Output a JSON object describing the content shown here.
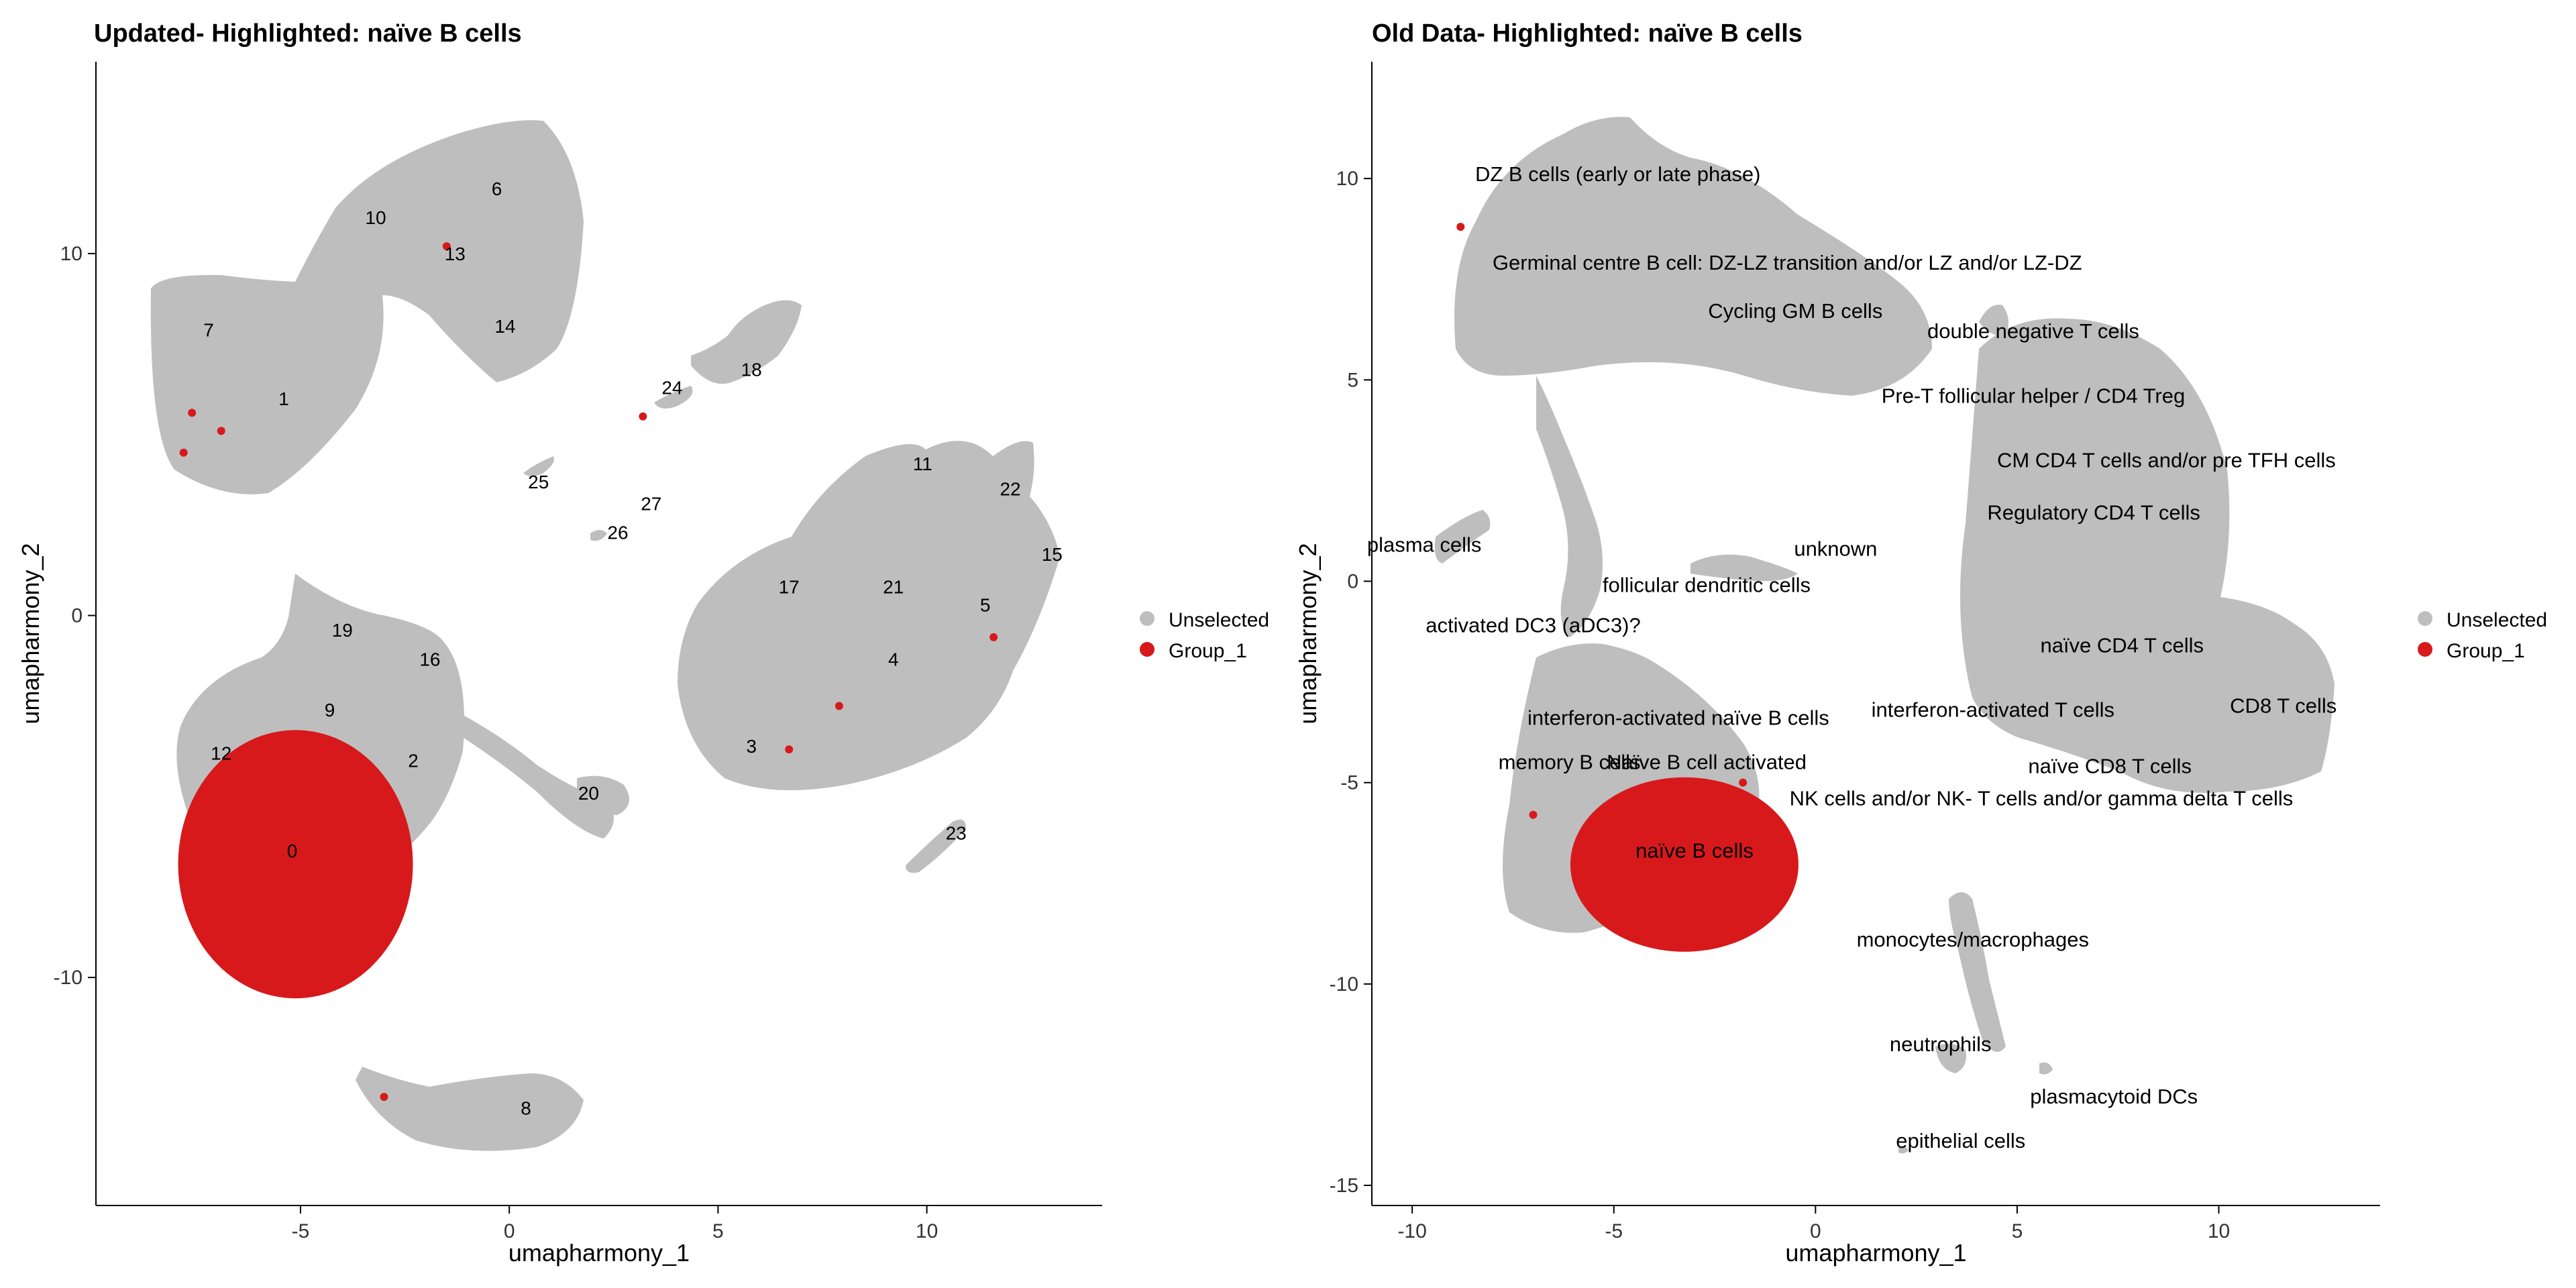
{
  "colors": {
    "unselected": "#bebebe",
    "group": "#d7191c",
    "axis": "#000000",
    "background": "#ffffff"
  },
  "legend": {
    "items": [
      {
        "label": "Unselected",
        "color": "#bebebe"
      },
      {
        "label": "Group_1",
        "color": "#d7191c"
      }
    ]
  },
  "chart_data": [
    {
      "type": "scatter",
      "title": "Updated- Highlighted: naïve B cells",
      "xlabel": "umapharmony_1",
      "ylabel": "umapharmony_2",
      "xlim": [
        -9.9,
        14.2
      ],
      "ylim": [
        -16.3,
        15.3
      ],
      "x_ticks": [
        -5,
        0,
        5,
        10
      ],
      "y_ticks": [
        -10,
        0,
        10
      ],
      "grid": false,
      "legend_position": "right",
      "series": [
        {
          "name": "Unselected",
          "color": "#bebebe"
        },
        {
          "name": "Group_1",
          "color": "#d7191c"
        }
      ],
      "clusters": [
        {
          "label": "0",
          "x": -5.2,
          "y": -6.5,
          "highlighted": true
        },
        {
          "label": "1",
          "x": -5.4,
          "y": 6.0,
          "highlighted": false
        },
        {
          "label": "2",
          "x": -2.3,
          "y": -4.0,
          "highlighted": false
        },
        {
          "label": "3",
          "x": 5.8,
          "y": -3.6,
          "highlighted": false
        },
        {
          "label": "4",
          "x": 9.2,
          "y": -1.2,
          "highlighted": false
        },
        {
          "label": "5",
          "x": 11.4,
          "y": 0.3,
          "highlighted": false
        },
        {
          "label": "6",
          "x": -0.3,
          "y": 11.8,
          "highlighted": false
        },
        {
          "label": "7",
          "x": -7.2,
          "y": 7.9,
          "highlighted": false
        },
        {
          "label": "8",
          "x": 0.4,
          "y": -13.6,
          "highlighted": false
        },
        {
          "label": "9",
          "x": -4.3,
          "y": -2.6,
          "highlighted": false
        },
        {
          "label": "10",
          "x": -3.2,
          "y": 11.0,
          "highlighted": false
        },
        {
          "label": "11",
          "x": 9.9,
          "y": 4.2,
          "highlighted": false
        },
        {
          "label": "12",
          "x": -6.9,
          "y": -3.8,
          "highlighted": false
        },
        {
          "label": "13",
          "x": -1.3,
          "y": 10.0,
          "highlighted": false
        },
        {
          "label": "14",
          "x": -0.1,
          "y": 8.0,
          "highlighted": false
        },
        {
          "label": "15",
          "x": 13.0,
          "y": 1.7,
          "highlighted": false
        },
        {
          "label": "16",
          "x": -1.9,
          "y": -1.2,
          "highlighted": false
        },
        {
          "label": "17",
          "x": 6.7,
          "y": 0.8,
          "highlighted": false
        },
        {
          "label": "18",
          "x": 5.8,
          "y": 6.8,
          "highlighted": false
        },
        {
          "label": "19",
          "x": -4.0,
          "y": -0.4,
          "highlighted": false
        },
        {
          "label": "20",
          "x": 1.9,
          "y": -4.9,
          "highlighted": false
        },
        {
          "label": "21",
          "x": 9.2,
          "y": 0.8,
          "highlighted": false
        },
        {
          "label": "22",
          "x": 12.0,
          "y": 3.5,
          "highlighted": false
        },
        {
          "label": "23",
          "x": 10.7,
          "y": -6.0,
          "highlighted": false
        },
        {
          "label": "24",
          "x": 3.9,
          "y": 6.3,
          "highlighted": false
        },
        {
          "label": "25",
          "x": 0.7,
          "y": 3.7,
          "highlighted": false
        },
        {
          "label": "26",
          "x": 2.6,
          "y": 2.3,
          "highlighted": false
        },
        {
          "label": "27",
          "x": 3.4,
          "y": 3.1,
          "highlighted": false
        }
      ]
    },
    {
      "type": "scatter",
      "title": "Old Data- Highlighted: naïve B cells",
      "xlabel": "umapharmony_1",
      "ylabel": "umapharmony_2",
      "xlim": [
        -11.0,
        14.0
      ],
      "ylim": [
        -15.5,
        12.9
      ],
      "x_ticks": [
        -10,
        -5,
        0,
        5,
        10
      ],
      "y_ticks": [
        -15,
        -10,
        -5,
        0,
        5,
        10
      ],
      "grid": false,
      "legend_position": "right",
      "series": [
        {
          "name": "Unselected",
          "color": "#bebebe"
        },
        {
          "name": "Group_1",
          "color": "#d7191c"
        }
      ],
      "clusters": [
        {
          "label": "DZ B cells (early or late phase)",
          "x": -4.9,
          "y": 10.1,
          "highlighted": false
        },
        {
          "label": "Germinal centre B cell: DZ-LZ transition and/or LZ and/or LZ-DZ",
          "x": -0.7,
          "y": 7.9,
          "highlighted": false
        },
        {
          "label": "Cycling GM B cells",
          "x": -0.5,
          "y": 6.7,
          "highlighted": false
        },
        {
          "label": "double negative T cells",
          "x": 5.4,
          "y": 6.2,
          "highlighted": false
        },
        {
          "label": "Pre-T follicular helper / CD4 Treg",
          "x": 5.4,
          "y": 4.6,
          "highlighted": false
        },
        {
          "label": "CM CD4 T cells  and/or pre TFH cells",
          "x": 8.7,
          "y": 3.0,
          "highlighted": false
        },
        {
          "label": "Regulatory CD4 T cells",
          "x": 6.9,
          "y": 1.7,
          "highlighted": false
        },
        {
          "label": "plasma cells",
          "x": -9.7,
          "y": 0.9,
          "highlighted": false
        },
        {
          "label": "unknown",
          "x": 0.5,
          "y": 0.8,
          "highlighted": false
        },
        {
          "label": "follicular dendritic cells",
          "x": -2.7,
          "y": -0.1,
          "highlighted": false
        },
        {
          "label": "activated DC3 (aDC3)?",
          "x": -7.0,
          "y": -1.1,
          "highlighted": false
        },
        {
          "label": "naïve CD4 T cells",
          "x": 7.6,
          "y": -1.6,
          "highlighted": false
        },
        {
          "label": "interferon-activated naïve B cells",
          "x": -3.4,
          "y": -3.4,
          "highlighted": false
        },
        {
          "label": "interferon-activated T cells",
          "x": 4.4,
          "y": -3.2,
          "highlighted": false
        },
        {
          "label": "CD8 T cells",
          "x": 11.6,
          "y": -3.1,
          "highlighted": false
        },
        {
          "label": "memory B cells",
          "x": -6.1,
          "y": -4.5,
          "highlighted": false
        },
        {
          "label": "Naïve B cell activated",
          "x": -2.7,
          "y": -4.5,
          "highlighted": false
        },
        {
          "label": "naïve CD8 T cells",
          "x": 7.3,
          "y": -4.6,
          "highlighted": false
        },
        {
          "label": "NK cells and/or NK- T cells and/or gamma delta T cells",
          "x": 5.6,
          "y": -5.4,
          "highlighted": false
        },
        {
          "label": "naïve B cells",
          "x": -3.0,
          "y": -6.7,
          "highlighted": true
        },
        {
          "label": "monocytes/macrophages",
          "x": 3.9,
          "y": -8.9,
          "highlighted": false
        },
        {
          "label": "neutrophils",
          "x": 3.1,
          "y": -11.5,
          "highlighted": false
        },
        {
          "label": "plasmacytoid DCs",
          "x": 7.4,
          "y": -12.8,
          "highlighted": false
        },
        {
          "label": "epithelial cells",
          "x": 3.6,
          "y": -13.9,
          "highlighted": false
        }
      ]
    }
  ]
}
